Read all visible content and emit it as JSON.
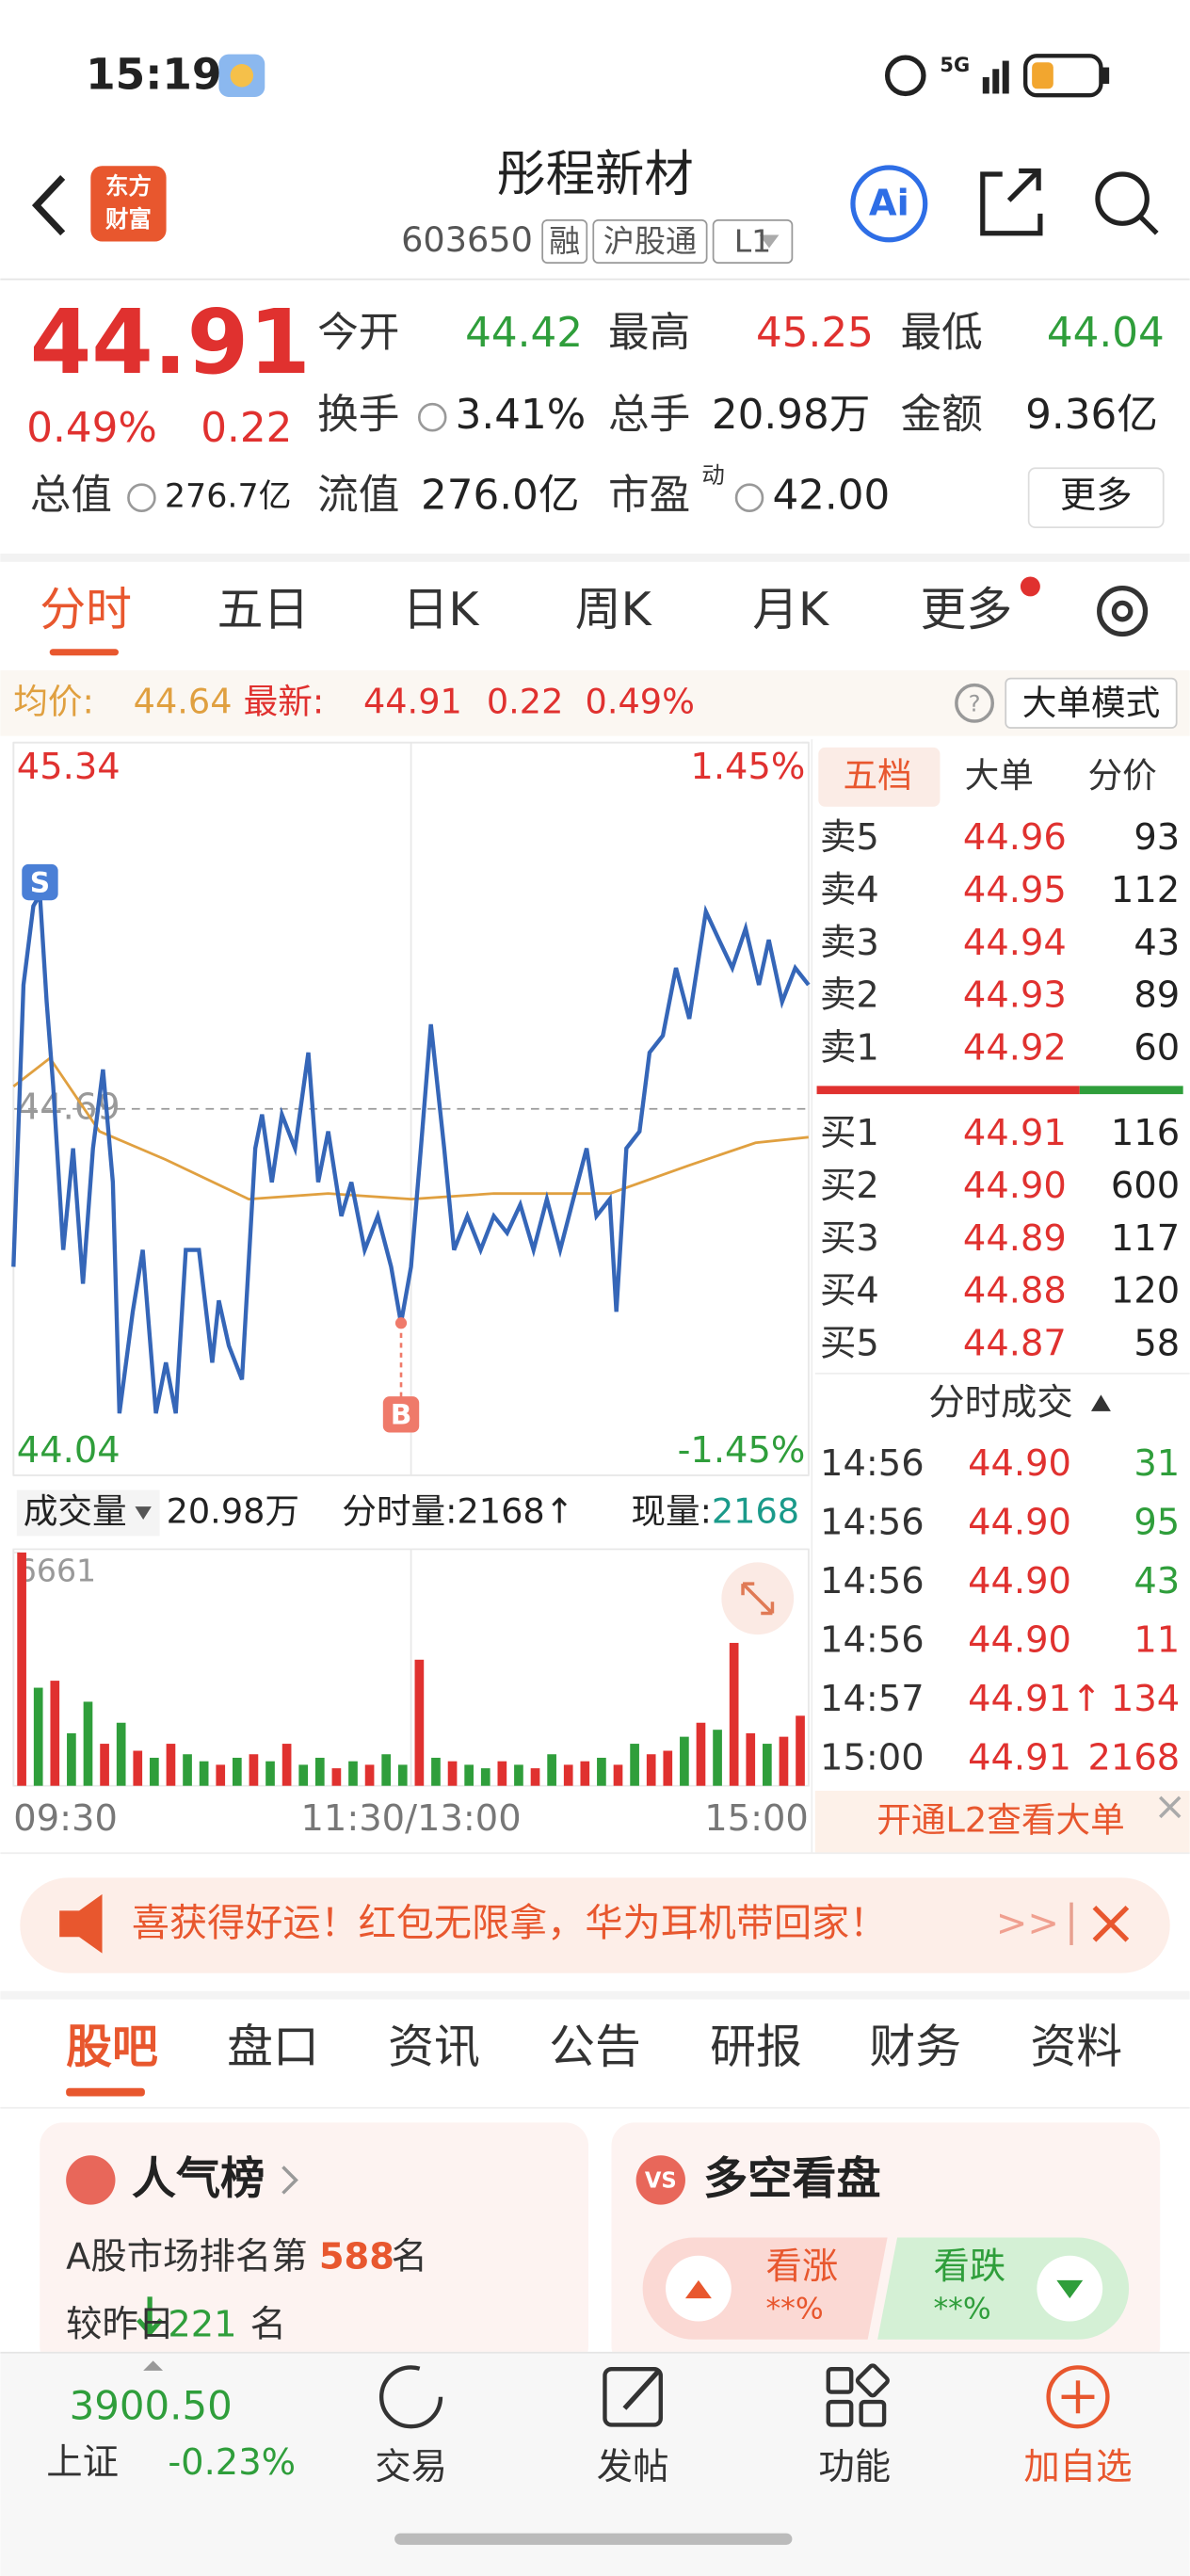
{
  "status_bar": {
    "time": "15:19"
  },
  "header": {
    "title": "彤程新材",
    "code": "603650",
    "tags": [
      "融",
      "沪股通",
      "L1"
    ],
    "logo": [
      "东方",
      "财富"
    ],
    "ai": "Ai"
  },
  "quote": {
    "price": "44.91",
    "change_pct": "0.49%",
    "change": "0.22",
    "fields": [
      {
        "label": "今开",
        "value": "44.42",
        "color": "#2f9e3b"
      },
      {
        "label": "最高",
        "value": "45.25",
        "color": "#e0312f"
      },
      {
        "label": "最低",
        "value": "44.04",
        "color": "#2f9e3b"
      },
      {
        "label": "换手",
        "value": "3.41%",
        "color": "#222"
      },
      {
        "label": "总手",
        "value": "20.98万",
        "color": "#222"
      },
      {
        "label": "金额",
        "value": "9.36亿",
        "color": "#222"
      },
      {
        "label": "总值",
        "value": "276.7亿",
        "color": "#222"
      },
      {
        "label": "流值",
        "value": "276.0亿",
        "color": "#222"
      },
      {
        "label": "市盈",
        "value": "42.00",
        "color": "#222",
        "sup": "动"
      }
    ],
    "more": "更多"
  },
  "chart_tabs": [
    "分时",
    "五日",
    "日K",
    "周K",
    "月K",
    "更多"
  ],
  "info_bar": {
    "avg_label": "均价:",
    "avg": "44.64",
    "latest_label": "最新:",
    "latest": "44.91",
    "change": "0.22",
    "change_pct": "0.49%",
    "mode": "大单模式"
  },
  "chart_data": [
    {
      "type": "line",
      "xlim": [
        0,
        240
      ],
      "ylim": [
        44.04,
        45.34
      ],
      "yticks": [
        44.04,
        44.69,
        45.34
      ],
      "y2lim": [
        -1.45,
        1.45
      ],
      "y2ticks": [
        {
          "value": -1.45,
          "label": "-1.45%"
        },
        {
          "value": 1.45,
          "label": "1.45%"
        }
      ],
      "x": [
        0,
        3,
        6,
        8,
        10,
        12,
        15,
        18,
        21,
        24,
        27,
        30,
        32,
        36,
        39,
        43,
        46,
        49,
        52,
        56,
        60,
        62,
        65,
        69,
        73,
        75,
        78,
        81,
        85,
        89,
        92,
        95,
        99,
        102,
        106,
        110,
        114,
        117,
        120,
        123,
        126,
        130,
        133,
        137,
        141,
        145,
        149,
        153,
        157,
        161,
        165,
        169,
        173,
        176,
        180,
        182,
        185,
        189,
        192,
        196,
        200,
        204,
        209,
        213,
        217,
        221,
        225,
        228,
        232,
        236,
        240
      ],
      "series": [
        {
          "color": "#3566b8",
          "values": [
            44.41,
            44.91,
            45.05,
            45.07,
            44.88,
            44.73,
            44.44,
            44.62,
            44.38,
            44.62,
            44.76,
            44.56,
            44.15,
            44.33,
            44.44,
            44.15,
            44.24,
            44.15,
            44.44,
            44.44,
            44.24,
            44.35,
            44.27,
            44.21,
            44.62,
            44.68,
            44.56,
            44.68,
            44.62,
            44.79,
            44.56,
            44.65,
            44.5,
            44.56,
            44.44,
            44.5,
            44.41,
            44.31,
            44.41,
            44.62,
            44.84,
            44.62,
            44.44,
            44.5,
            44.44,
            44.5,
            44.47,
            44.52,
            44.44,
            44.53,
            44.44,
            44.53,
            44.62,
            44.5,
            44.53,
            44.33,
            44.62,
            44.65,
            44.79,
            44.82,
            44.94,
            44.85,
            45.04,
            44.99,
            44.94,
            45.01,
            44.91,
            44.99,
            44.88,
            44.94,
            44.91
          ]
        },
        {
          "color": "#e0a040",
          "x": [
            0,
            11,
            26,
            46,
            71,
            95,
            120,
            145,
            180,
            204,
            224,
            240
          ],
          "values": [
            44.73,
            44.78,
            44.65,
            44.6,
            44.53,
            44.54,
            44.53,
            44.54,
            44.54,
            44.59,
            44.63,
            44.64
          ]
        }
      ],
      "annotations": [
        {
          "text": "S",
          "x": 8,
          "y": 45.07,
          "color": "#4a7fd6"
        },
        {
          "text": "B",
          "x": 117,
          "y": 44.31,
          "color": "#ef7a6a"
        }
      ]
    },
    {
      "type": "bar",
      "xlim": [
        0,
        240
      ],
      "ylim": [
        0,
        6661
      ],
      "yticks": [
        6661
      ],
      "xticks": [
        {
          "value": 0,
          "label": "09:30"
        },
        {
          "value": 120,
          "label": "11:30/13:00"
        },
        {
          "value": 240,
          "label": "15:00"
        }
      ],
      "x": [
        2.5,
        7.5,
        12.5,
        17.5,
        22.5,
        27.5,
        32.5,
        37.5,
        42.5,
        47.5,
        52.5,
        57.5,
        62.5,
        67.5,
        72.5,
        77.5,
        82.5,
        87.5,
        92.5,
        97.5,
        102.5,
        107.5,
        112.5,
        117.5,
        122.5,
        127.5,
        132.5,
        137.5,
        142.5,
        147.5,
        152.5,
        157.5,
        162.5,
        167.5,
        172.5,
        177.5,
        182.5,
        187.5,
        192.5,
        197.5,
        202.5,
        207.5,
        212.5,
        217.5,
        222.5,
        227.5,
        232.5,
        237.5
      ],
      "values": [
        6661,
        2800,
        3000,
        1500,
        2400,
        1200,
        1800,
        1000,
        800,
        1200,
        900,
        700,
        600,
        800,
        900,
        700,
        1200,
        600,
        800,
        500,
        700,
        600,
        900,
        600,
        3600,
        800,
        700,
        600,
        500,
        700,
        600,
        500,
        900,
        600,
        700,
        800,
        600,
        1200,
        900,
        1000,
        1400,
        1800,
        1600,
        4080,
        1500,
        1200,
        1400,
        2000
      ],
      "colors": [
        "#e0312f",
        "#2f9e3b",
        "#e0312f",
        "#2f9e3b",
        "#2f9e3b",
        "#e0312f",
        "#2f9e3b",
        "#e0312f",
        "#2f9e3b",
        "#e0312f",
        "#2f9e3b",
        "#2f9e3b",
        "#e0312f",
        "#2f9e3b",
        "#e0312f",
        "#2f9e3b",
        "#e0312f",
        "#2f9e3b",
        "#2f9e3b",
        "#e0312f",
        "#2f9e3b",
        "#e0312f",
        "#2f9e3b",
        "#2f9e3b",
        "#e0312f",
        "#2f9e3b",
        "#e0312f",
        "#2f9e3b",
        "#2f9e3b",
        "#e0312f",
        "#2f9e3b",
        "#e0312f",
        "#2f9e3b",
        "#e0312f",
        "#e0312f",
        "#2f9e3b",
        "#e0312f",
        "#2f9e3b",
        "#e0312f",
        "#e0312f",
        "#2f9e3b",
        "#e0312f",
        "#2f9e3b",
        "#e0312f",
        "#e0312f",
        "#2f9e3b",
        "#e0312f",
        "#e0312f"
      ]
    }
  ],
  "volume_header": {
    "label": "成交量",
    "total": "20.98万",
    "minute": "分时量:2168↑",
    "current_label": "现量:",
    "current": "2168"
  },
  "order_book": {
    "tabs": [
      "五档",
      "大单",
      "分价"
    ],
    "sell": [
      {
        "label": "卖5",
        "price": "44.96",
        "volume": "93"
      },
      {
        "label": "卖4",
        "price": "44.95",
        "volume": "112"
      },
      {
        "label": "卖3",
        "price": "44.94",
        "volume": "43"
      },
      {
        "label": "卖2",
        "price": "44.93",
        "volume": "89"
      },
      {
        "label": "卖1",
        "price": "44.92",
        "volume": "60"
      }
    ],
    "buy": [
      {
        "label": "买1",
        "price": "44.91",
        "volume": "116"
      },
      {
        "label": "买2",
        "price": "44.90",
        "volume": "600"
      },
      {
        "label": "买3",
        "price": "44.89",
        "volume": "117"
      },
      {
        "label": "买4",
        "price": "44.88",
        "volume": "120"
      },
      {
        "label": "买5",
        "price": "44.87",
        "volume": "58"
      }
    ],
    "trades_title": "分时成交",
    "trades": [
      {
        "time": "14:56",
        "price": "44.90",
        "volume": "31",
        "color": "#2f9e3b"
      },
      {
        "time": "14:56",
        "price": "44.90",
        "volume": "95",
        "color": "#2f9e3b"
      },
      {
        "time": "14:56",
        "price": "44.90",
        "volume": "43",
        "color": "#2f9e3b"
      },
      {
        "time": "14:56",
        "price": "44.90",
        "volume": "11",
        "color": "#e0312f"
      },
      {
        "time": "14:57",
        "price": "44.91↑",
        "volume": "134",
        "color": "#e0312f"
      },
      {
        "time": "15:00",
        "price": "44.91",
        "volume": "2168",
        "color": "#e0312f"
      }
    ],
    "l2": "开通L2查看大单"
  },
  "banner": {
    "text": "喜获得好运！红包无限拿，华为耳机带回家！",
    "more": ">>"
  },
  "section_tabs": [
    "股吧",
    "盘口",
    "资讯",
    "公告",
    "研报",
    "财务",
    "资料"
  ],
  "cards": {
    "popularity": {
      "title": "人气榜",
      "rank_prefix": "A股市场排名第",
      "rank": "588",
      "rank_suffix": "名",
      "delta_prefix": "较昨日",
      "delta": "221",
      "delta_suffix": "名"
    },
    "sentiment": {
      "title": "多空看盘",
      "icon": "VS",
      "up": "看涨",
      "up_value": "**%",
      "down": "看跌",
      "down_value": "**%"
    }
  },
  "bottom_nav": {
    "index_value": "3900.50",
    "index_name": "上证",
    "index_change": "-0.23%",
    "items": [
      "交易",
      "发帖",
      "功能",
      "加自选"
    ]
  }
}
